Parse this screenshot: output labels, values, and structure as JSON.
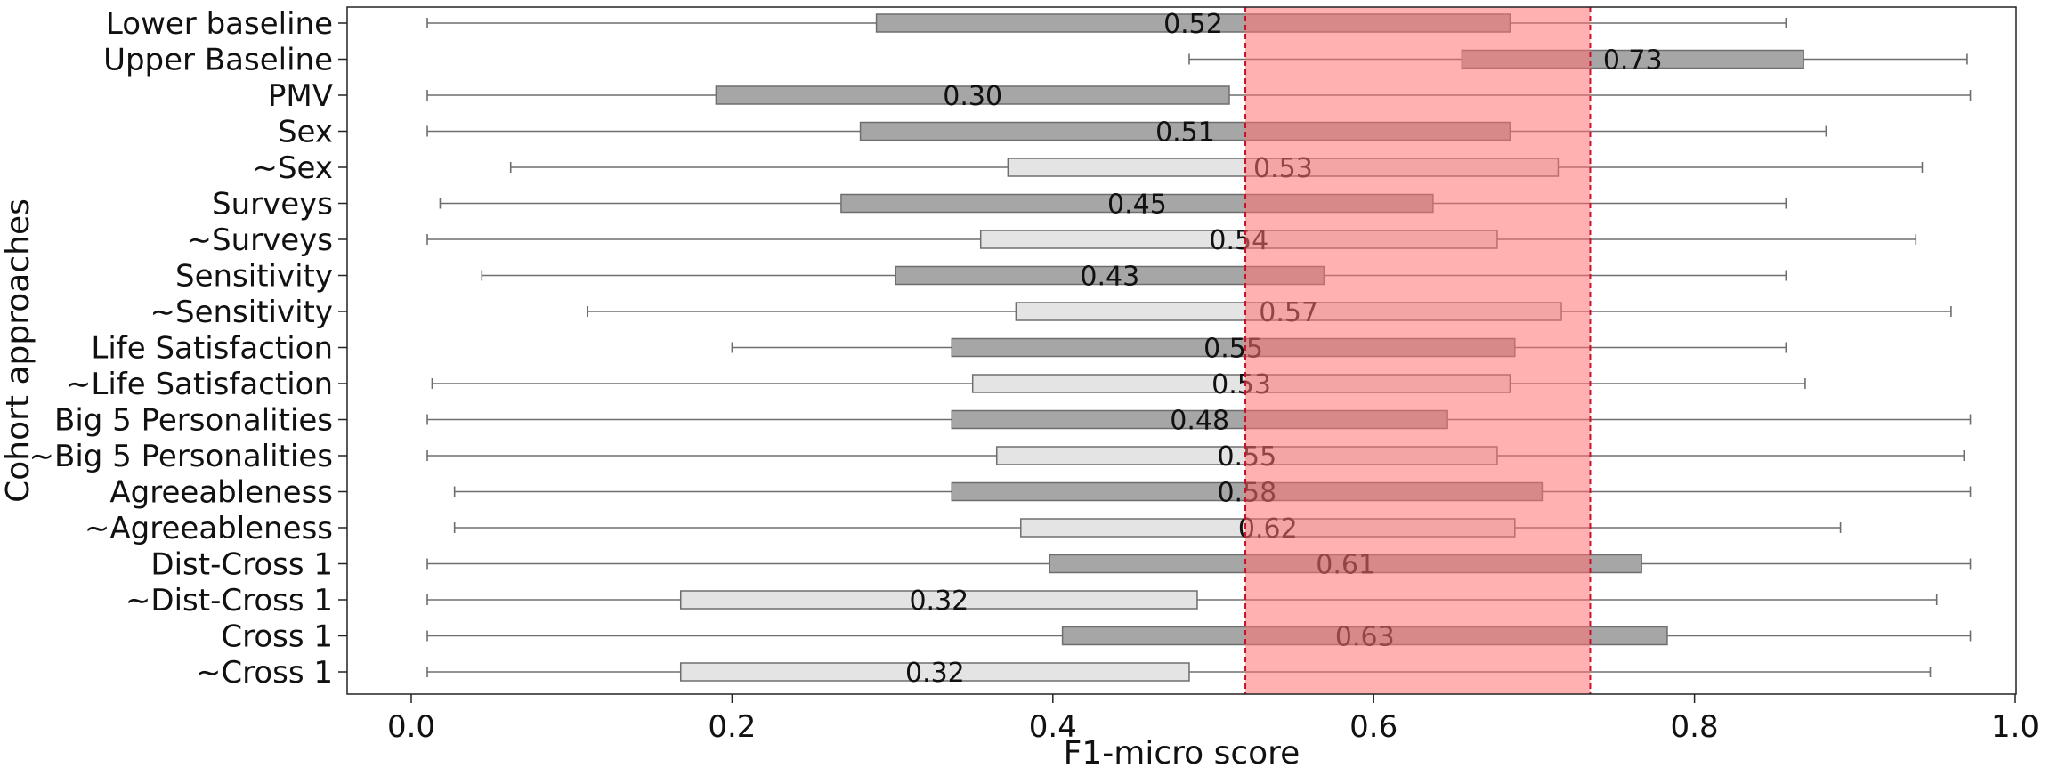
{
  "chart_data": {
    "type": "horizontal-box",
    "xlabel": "F1-micro score",
    "ylabel": "Cohort approaches",
    "xlim": [
      -0.04,
      1.02
    ],
    "xticks": [
      0.0,
      0.2,
      0.4,
      0.6,
      0.8,
      1.0
    ],
    "xtick_labels": [
      "0.0",
      "0.2",
      "0.4",
      "0.6",
      "0.8",
      "1.0"
    ],
    "band": {
      "lo": 0.52,
      "hi": 0.735,
      "color": "#ff6f6f",
      "opacity": 0.55,
      "line_color": "#c8102e"
    },
    "colors": {
      "dark": "#a6a6a6",
      "light": "#e4e4e4",
      "stroke": "#6e6e6e"
    },
    "rows": [
      {
        "label": "Lower baseline",
        "whislo": 0.01,
        "q1": 0.29,
        "q3": 0.685,
        "whishi": 0.857,
        "median_label": "0.52",
        "fill": "dark"
      },
      {
        "label": "Upper Baseline",
        "whislo": 0.485,
        "q1": 0.655,
        "q3": 0.868,
        "whishi": 0.97,
        "median_label": "0.73",
        "fill": "dark"
      },
      {
        "label": "PMV",
        "whislo": 0.01,
        "q1": 0.19,
        "q3": 0.51,
        "whishi": 0.972,
        "median_label": "0.30",
        "fill": "dark"
      },
      {
        "label": "Sex",
        "whislo": 0.01,
        "q1": 0.28,
        "q3": 0.685,
        "whishi": 0.882,
        "median_label": "0.51",
        "fill": "dark"
      },
      {
        "label": "∼Sex",
        "whislo": 0.062,
        "q1": 0.372,
        "q3": 0.715,
        "whishi": 0.942,
        "median_label": "0.53",
        "fill": "light"
      },
      {
        "label": "Surveys",
        "whislo": 0.018,
        "q1": 0.268,
        "q3": 0.637,
        "whishi": 0.857,
        "median_label": "0.45",
        "fill": "dark"
      },
      {
        "label": "∼Surveys",
        "whislo": 0.01,
        "q1": 0.355,
        "q3": 0.677,
        "whishi": 0.938,
        "median_label": "0.54",
        "fill": "light"
      },
      {
        "label": "Sensitivity",
        "whislo": 0.044,
        "q1": 0.302,
        "q3": 0.569,
        "whishi": 0.857,
        "median_label": "0.43",
        "fill": "dark"
      },
      {
        "label": "∼Sensitivity",
        "whislo": 0.11,
        "q1": 0.377,
        "q3": 0.717,
        "whishi": 0.96,
        "median_label": "0.57",
        "fill": "light"
      },
      {
        "label": "Life Satisfaction",
        "whislo": 0.2,
        "q1": 0.337,
        "q3": 0.688,
        "whishi": 0.857,
        "median_label": "0.55",
        "fill": "dark"
      },
      {
        "label": "∼Life Satisfaction",
        "whislo": 0.013,
        "q1": 0.35,
        "q3": 0.685,
        "whishi": 0.869,
        "median_label": "0.53",
        "fill": "light"
      },
      {
        "label": "Big 5 Personalities",
        "whislo": 0.01,
        "q1": 0.337,
        "q3": 0.646,
        "whishi": 0.972,
        "median_label": "0.48",
        "fill": "dark"
      },
      {
        "label": "∼Big 5 Personalities",
        "whislo": 0.01,
        "q1": 0.365,
        "q3": 0.677,
        "whishi": 0.968,
        "median_label": "0.55",
        "fill": "light"
      },
      {
        "label": "Agreeableness",
        "whislo": 0.027,
        "q1": 0.337,
        "q3": 0.705,
        "whishi": 0.972,
        "median_label": "0.58",
        "fill": "dark"
      },
      {
        "label": "∼Agreeableness",
        "whislo": 0.027,
        "q1": 0.38,
        "q3": 0.688,
        "whishi": 0.891,
        "median_label": "0.62",
        "fill": "light"
      },
      {
        "label": "Dist-Cross 1",
        "whislo": 0.01,
        "q1": 0.398,
        "q3": 0.767,
        "whishi": 0.972,
        "median_label": "0.61",
        "fill": "dark"
      },
      {
        "label": "∼Dist-Cross 1",
        "whislo": 0.01,
        "q1": 0.168,
        "q3": 0.49,
        "whishi": 0.951,
        "median_label": "0.32",
        "fill": "light"
      },
      {
        "label": "Cross 1",
        "whislo": 0.01,
        "q1": 0.406,
        "q3": 0.783,
        "whishi": 0.972,
        "median_label": "0.63",
        "fill": "dark"
      },
      {
        "label": "∼Cross 1",
        "whislo": 0.01,
        "q1": 0.168,
        "q3": 0.485,
        "whishi": 0.947,
        "median_label": "0.32",
        "fill": "light"
      }
    ]
  }
}
